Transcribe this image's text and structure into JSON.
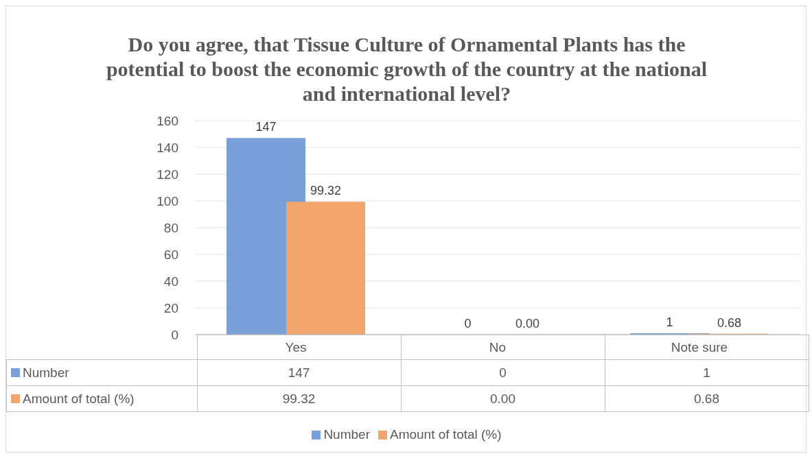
{
  "chart_data": {
    "type": "bar",
    "title": "Do you agree, that Tissue Culture of Ornamental Plants has the potential to boost the economic growth of the country at the national and international level?",
    "categories": [
      "Yes",
      "No",
      "Note sure"
    ],
    "series": [
      {
        "name": "Number",
        "color": "#7aa0da",
        "values": [
          147,
          0,
          1
        ],
        "value_labels": [
          "147",
          "0",
          "1"
        ]
      },
      {
        "name": "Amount of total (%)",
        "color": "#f2a56c",
        "values": [
          99.32,
          0,
          0.68
        ],
        "value_labels": [
          "99.32",
          "0.00",
          "0.68"
        ]
      }
    ],
    "ylim": [
      0,
      160
    ],
    "yticks": [
      0,
      20,
      40,
      60,
      80,
      100,
      120,
      140,
      160
    ],
    "grid": "y",
    "legend": "bottom"
  }
}
